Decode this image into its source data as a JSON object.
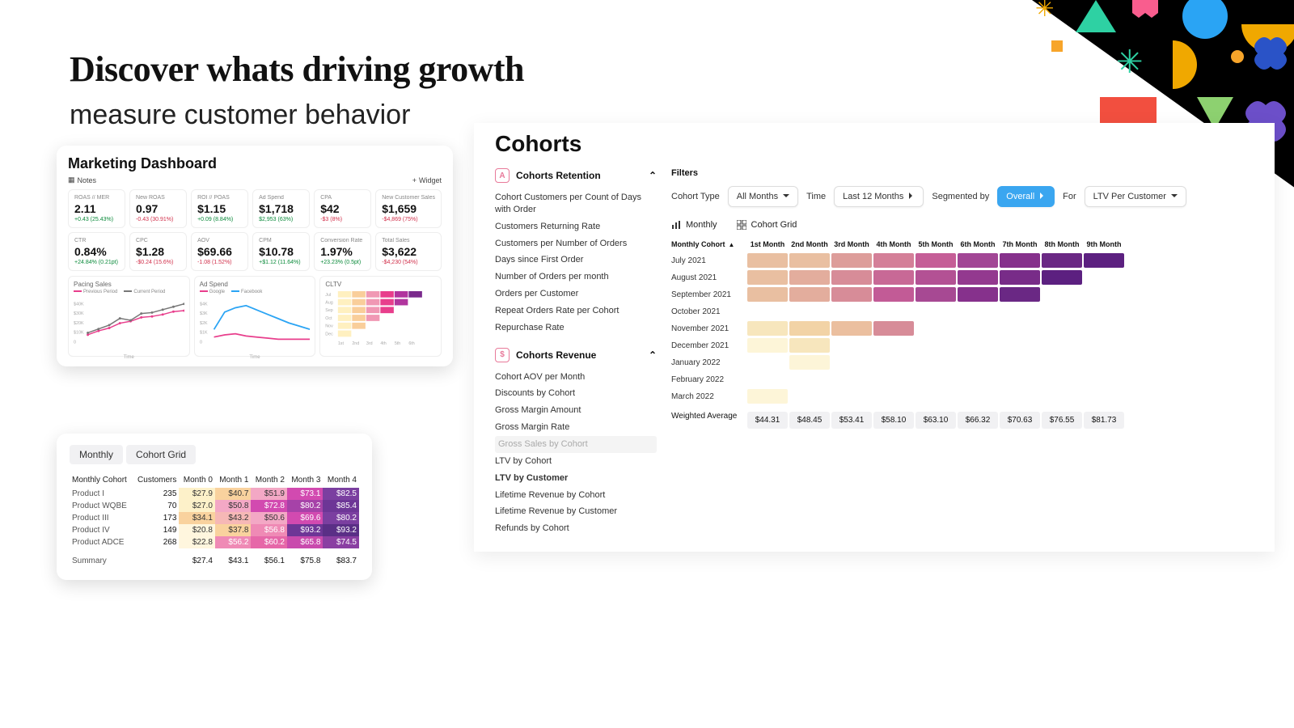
{
  "hero": {
    "title": "Discover whats driving growth",
    "subtitle": "measure customer behavior"
  },
  "decor": {
    "bg": "#000000",
    "colors": [
      "#2ed1a3",
      "#f0a800",
      "#f95d8e",
      "#2aa4f4",
      "#f24f3f",
      "#8dd170",
      "#6c4fc9",
      "#f7a52a",
      "#2a53c7"
    ]
  },
  "marketing": {
    "title": "Marketing Dashboard",
    "notes_label": "Notes",
    "widget_label": "Widget",
    "kpis": [
      {
        "label": "ROAS // MER",
        "value": "2.11",
        "delta": "+0.43 (25.43%)",
        "sign": "pos"
      },
      {
        "label": "New ROAS",
        "value": "0.97",
        "delta": "-0.43 (30.91%)",
        "sign": "neg"
      },
      {
        "label": "ROI // POAS",
        "value": "$1.15",
        "delta": "+0.09 (8.84%)",
        "sign": "pos"
      },
      {
        "label": "Ad Spend",
        "value": "$1,718",
        "delta": "$2,953 (63%)",
        "sign": "pos"
      },
      {
        "label": "CPA",
        "value": "$42",
        "delta": "-$3 (8%)",
        "sign": "neg"
      },
      {
        "label": "New Customer Sales",
        "value": "$1,659",
        "delta": "-$4,869 (75%)",
        "sign": "neg"
      },
      {
        "label": "CTR",
        "value": "0.84%",
        "delta": "+24.84% (0.21pt)",
        "sign": "pos"
      },
      {
        "label": "CPC",
        "value": "$1.28",
        "delta": "-$0.24 (15.6%)",
        "sign": "neg"
      },
      {
        "label": "AOV",
        "value": "$69.66",
        "delta": "-1.08 (1.52%)",
        "sign": "neg"
      },
      {
        "label": "CPM",
        "value": "$10.78",
        "delta": "+$1.12 (11.64%)",
        "sign": "pos"
      },
      {
        "label": "Conversion Rate",
        "value": "1.97%",
        "delta": "+23.23% (0.5pt)",
        "sign": "pos"
      },
      {
        "label": "Total Sales",
        "value": "$3,622",
        "delta": "-$4,230 (54%)",
        "sign": "neg"
      }
    ],
    "charts": {
      "pacing": {
        "title": "Pacing Sales",
        "x_label": "Time",
        "legend": [
          "Previous Period",
          "Current Period"
        ],
        "colors": [
          "#e83e8c",
          "#777777"
        ],
        "y_ticks": [
          "$40K",
          "$30K",
          "$20K",
          "$10K",
          "0"
        ],
        "prev": [
          8,
          12,
          15,
          20,
          22,
          26,
          27,
          29,
          32,
          33
        ],
        "curr": [
          10,
          14,
          18,
          25,
          23,
          30,
          31,
          34,
          37,
          40
        ]
      },
      "adspend": {
        "title": "Ad Spend",
        "x_label": "Time",
        "legend": [
          "Google",
          "Facebook"
        ],
        "colors": [
          "#e83e8c",
          "#2aa4f4"
        ],
        "y_ticks": [
          "$4K",
          "$3K",
          "$2K",
          "$1K",
          "0"
        ],
        "google": [
          5,
          7,
          8,
          6,
          5,
          4,
          3,
          3,
          3,
          3
        ],
        "fb": [
          12,
          28,
          32,
          34,
          30,
          26,
          22,
          18,
          15,
          12
        ]
      },
      "cltv": {
        "title": "CLTV",
        "rows": [
          "Jul",
          "Aug",
          "Sep",
          "Oct",
          "Nov",
          "Dec"
        ],
        "x_ticks": [
          "1st",
          "2nd",
          "3rd",
          "4th",
          "5th",
          "6th"
        ],
        "colors": [
          "#fff0c0",
          "#f9ce9a",
          "#f098b4",
          "#e83e8c",
          "#b1359e",
          "#7a2a8c"
        ],
        "lengths": [
          6,
          5,
          4,
          3,
          2,
          1
        ]
      }
    }
  },
  "small_cohort": {
    "tabs": [
      "Monthly",
      "Cohort Grid"
    ],
    "columns": [
      "Monthly Cohort",
      "Customers",
      "Month 0",
      "Month 1",
      "Month 2",
      "Month 3",
      "Month 4"
    ],
    "rows": [
      {
        "label": "Product I",
        "cust": "235",
        "cells": [
          {
            "v": "$27.9",
            "c": "#fdf1c9"
          },
          {
            "v": "$40.7",
            "c": "#f9d29e"
          },
          {
            "v": "$51.9",
            "c": "#f3a8c5"
          },
          {
            "v": "$73.1",
            "c": "#d24ab0"
          },
          {
            "v": "$82.5",
            "c": "#7b3fa0"
          }
        ]
      },
      {
        "label": "Product WQBE",
        "cust": "70",
        "cells": [
          {
            "v": "$27.0",
            "c": "#fdf1c9"
          },
          {
            "v": "$50.8",
            "c": "#f3a8c5"
          },
          {
            "v": "$72.8",
            "c": "#d24ab0"
          },
          {
            "v": "$80.2",
            "c": "#a642a8"
          },
          {
            "v": "$85.4",
            "c": "#6d3696"
          }
        ]
      },
      {
        "label": "Product III",
        "cust": "173",
        "cells": [
          {
            "v": "$34.1",
            "c": "#f9d29e"
          },
          {
            "v": "$43.2",
            "c": "#f6b8b6"
          },
          {
            "v": "$50.6",
            "c": "#f3a8c5"
          },
          {
            "v": "$69.6",
            "c": "#d24ab0"
          },
          {
            "v": "$80.2",
            "c": "#7b3fa0"
          }
        ]
      },
      {
        "label": "Product IV",
        "cust": "149",
        "cells": [
          {
            "v": "$20.8",
            "c": "#fff6de"
          },
          {
            "v": "$37.8",
            "c": "#f9d29e"
          },
          {
            "v": "$56.8",
            "c": "#ef8ab5"
          },
          {
            "v": "$93.2",
            "c": "#6d3696"
          },
          {
            "v": "$93.2",
            "c": "#5a2f86"
          }
        ]
      },
      {
        "label": "Product ADCE",
        "cust": "268",
        "cells": [
          {
            "v": "$22.8",
            "c": "#fff6de"
          },
          {
            "v": "$56.2",
            "c": "#ef8ab5"
          },
          {
            "v": "$60.2",
            "c": "#e667a8"
          },
          {
            "v": "$65.8",
            "c": "#c94aad"
          },
          {
            "v": "$74.5",
            "c": "#8a3fa2"
          }
        ]
      }
    ],
    "summary": {
      "label": "Summary",
      "cells": [
        "$27.4",
        "$43.1",
        "$56.1",
        "$75.8",
        "$83.7"
      ]
    }
  },
  "cohorts": {
    "title": "Cohorts",
    "side": {
      "retention": {
        "title": "Cohorts Retention",
        "icon": "A",
        "items": [
          "Cohort Customers per Count of Days with Order",
          "Customers Returning Rate",
          "Customers per Number of Orders",
          "Days since First Order",
          "Number of Orders per month",
          "Orders per Customer",
          "Repeat Orders Rate per Cohort",
          "Repurchase Rate"
        ]
      },
      "revenue": {
        "title": "Cohorts Revenue",
        "icon": "$",
        "items": [
          "Cohort AOV per Month",
          "Discounts by Cohort",
          "Gross Margin Amount",
          "Gross Margin Rate",
          "Gross Sales by Cohort",
          "LTV by Cohort",
          "LTV by Customer",
          "Lifetime Revenue by Cohort",
          "Lifetime Revenue by Customer",
          "Refunds by Cohort"
        ],
        "dim_index": 4,
        "selected_index": 6
      }
    },
    "filters": {
      "label": "Filters",
      "cohort_type_label": "Cohort Type",
      "cohort_type_value": "All Months",
      "time_label": "Time",
      "time_value": "Last 12 Months",
      "segmented_label": "Segmented by",
      "segmented_value": "Overall",
      "for_label": "For",
      "for_value": "LTV Per Customer"
    },
    "view_tabs": {
      "monthly": "Monthly",
      "grid": "Cohort Grid"
    },
    "grid": {
      "row_header": "Monthly Cohort",
      "cols": [
        "1st Month",
        "2nd Month",
        "3rd Month",
        "4th Month",
        "5th Month",
        "6th Month",
        "7th Month",
        "8th Month",
        "9th Month"
      ],
      "rows": [
        {
          "label": "July 2021",
          "cells": [
            "#e9bfa1",
            "#e9bfa1",
            "#dd9d9a",
            "#d47f98",
            "#c55e97",
            "#a24695",
            "#86318c",
            "#6a2884",
            "#5c2080"
          ]
        },
        {
          "label": "August 2021",
          "cells": [
            "#e9bfa1",
            "#e3ad9d",
            "#d78c98",
            "#c86996",
            "#b35194",
            "#93398f",
            "#782c88",
            "#5c2080",
            null
          ]
        },
        {
          "label": "September 2021",
          "cells": [
            "#e9bfa1",
            "#e3ad9d",
            "#d78c98",
            "#c25b96",
            "#a74993",
            "#86318c",
            "#6a2884",
            null,
            null
          ]
        },
        {
          "label": "October 2021",
          "cells": [
            null,
            null,
            null,
            null,
            null,
            null,
            null,
            null,
            null
          ]
        },
        {
          "label": "November 2021",
          "cells": [
            "#f7e6bd",
            "#f2d3a6",
            "#ebbf9f",
            "#d78c98",
            null,
            null,
            null,
            null,
            null
          ]
        },
        {
          "label": "December 2021",
          "cells": [
            "#fdf5d8",
            "#f7e6bd",
            null,
            null,
            null,
            null,
            null,
            null,
            null
          ]
        },
        {
          "label": "January 2022",
          "cells": [
            null,
            "#fdf5d8",
            null,
            null,
            null,
            null,
            null,
            null,
            null
          ]
        },
        {
          "label": "February 2022",
          "cells": [
            null,
            null,
            null,
            null,
            null,
            null,
            null,
            null,
            null
          ]
        },
        {
          "label": "March 2022",
          "cells": [
            "#fdf5d8",
            null,
            null,
            null,
            null,
            null,
            null,
            null,
            null
          ]
        }
      ],
      "avg": {
        "label": "Weighted Average",
        "values": [
          "$44.31",
          "$48.45",
          "$53.41",
          "$58.10",
          "$63.10",
          "$66.32",
          "$70.63",
          "$76.55",
          "$81.73"
        ]
      }
    }
  }
}
